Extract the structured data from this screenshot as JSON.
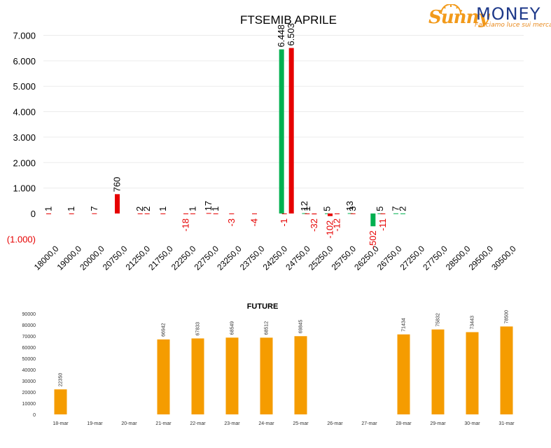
{
  "logo": {
    "brand_part1": "Sunny",
    "brand_part2": "MONEY",
    "tagline": "Facciamo luce sui mercati"
  },
  "chart_data": [
    {
      "type": "bar",
      "title": "FTSEMIB APRILE",
      "ylim": [
        -1000,
        7000
      ],
      "yticks": [
        -1000,
        0,
        1000,
        2000,
        3000,
        4000,
        5000,
        6000,
        7000
      ],
      "ytick_labels": [
        "(1.000)",
        "0",
        "1.000",
        "2.000",
        "3.000",
        "4.000",
        "5.000",
        "6.000",
        "7.000"
      ],
      "grid": true,
      "categories": [
        "18000,0",
        "19000,0",
        "20000,0",
        "20750,0",
        "21250,0",
        "21750,0",
        "22250,0",
        "22750,0",
        "23250,0",
        "23750,0",
        "24250,0",
        "24750,0",
        "25250,0",
        "25750,0",
        "26250,0",
        "26750,0",
        "27250,0",
        "27750,0",
        "28500,0",
        "29500,0",
        "30500,0"
      ],
      "series": [
        {
          "color": "#00b050",
          "points": [
            {
              "x": "24250,0",
              "value": 6448,
              "label": "6.448"
            },
            {
              "x": "24750,0",
              "value": 12,
              "label": "12"
            },
            {
              "x": "25250,0",
              "value": 5,
              "label": "5"
            },
            {
              "x": "25750,0",
              "value": 13,
              "label": "13"
            },
            {
              "x": "26250,0",
              "value": -502,
              "label": "-502"
            },
            {
              "x": "26250,0",
              "value": 5,
              "label": "5"
            },
            {
              "x": "26750,0",
              "value": 7,
              "label": "7"
            },
            {
              "x": "26750,0",
              "value": 2,
              "label": "2"
            }
          ]
        },
        {
          "color": "#e60000",
          "points": [
            {
              "x": "18000,0",
              "value": 1,
              "label": "1"
            },
            {
              "x": "19000,0",
              "value": 1,
              "label": "1"
            },
            {
              "x": "20000,0",
              "value": 7,
              "label": "7"
            },
            {
              "x": "20750,0",
              "value": 760,
              "label": "760"
            },
            {
              "x": "21250,0",
              "value": 2,
              "label": "2"
            },
            {
              "x": "21250,0",
              "value": 2,
              "label": "2"
            },
            {
              "x": "21750,0",
              "value": 1,
              "label": "1"
            },
            {
              "x": "22250,0",
              "value": -18,
              "label": "-18"
            },
            {
              "x": "22250,0",
              "value": 1,
              "label": "1"
            },
            {
              "x": "22750,0",
              "value": 17,
              "label": "17"
            },
            {
              "x": "22750,0",
              "value": 1,
              "label": "1"
            },
            {
              "x": "23250,0",
              "value": -3,
              "label": "-3"
            },
            {
              "x": "23750,0",
              "value": -4,
              "label": "-4"
            },
            {
              "x": "24250,0",
              "value": -1,
              "label": "-1"
            },
            {
              "x": "24250,0",
              "value": 6503,
              "label": "6.503"
            },
            {
              "x": "24750,0",
              "value": 1,
              "label": "1"
            },
            {
              "x": "24750,0",
              "value": -32,
              "label": "-32"
            },
            {
              "x": "25250,0",
              "value": -102,
              "label": "-102"
            },
            {
              "x": "25250,0",
              "value": -12,
              "label": "-12"
            },
            {
              "x": "25750,0",
              "value": 3,
              "label": "3"
            },
            {
              "x": "26250,0",
              "value": -11,
              "label": "-11"
            }
          ]
        }
      ]
    },
    {
      "type": "bar",
      "title": "FUTURE",
      "ylim": [
        0,
        90000
      ],
      "yticks": [
        0,
        10000,
        20000,
        30000,
        40000,
        50000,
        60000,
        70000,
        80000,
        90000
      ],
      "grid": false,
      "categories": [
        "18-mar",
        "19-mar",
        "20-mar",
        "21-mar",
        "22-mar",
        "23-mar",
        "24-mar",
        "25-mar",
        "26-mar",
        "27-mar",
        "28-mar",
        "29-mar",
        "30-mar",
        "31-mar"
      ],
      "values": [
        22350,
        null,
        null,
        66942,
        67833,
        68549,
        68512,
        69845,
        null,
        null,
        71434,
        75832,
        73443,
        78500
      ],
      "color": "#f59c00"
    }
  ]
}
